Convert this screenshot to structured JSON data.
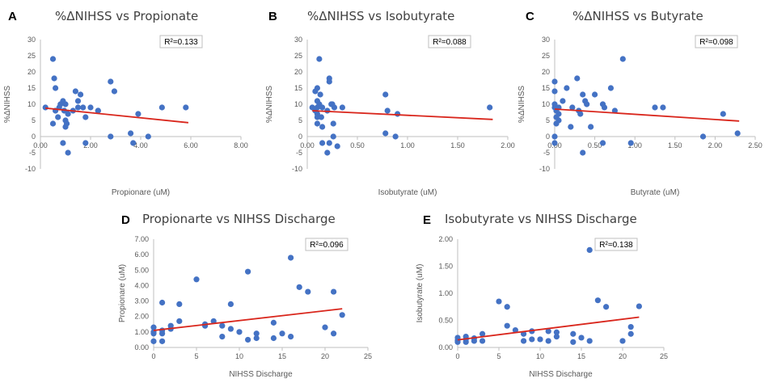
{
  "chart_data": [
    {
      "id": "A",
      "letter": "A",
      "type": "scatter",
      "title": "%ΔNIHSS vs Propionate",
      "xlabel": "Propionare (uM)",
      "ylabel": "%ΔNIHSS",
      "xlim": [
        0,
        8
      ],
      "ylim": [
        -10,
        30
      ],
      "xticks": [
        "0.00",
        "2.00",
        "4.00",
        "6.00",
        "8.00"
      ],
      "yticks": [
        "-10",
        "-5",
        "0",
        "5",
        "10",
        "15",
        "20",
        "25",
        "30"
      ],
      "r2": "R²=0.133",
      "trend": [
        [
          0.2,
          8.8
        ],
        [
          5.9,
          4.3
        ]
      ],
      "points": [
        [
          0.2,
          9
        ],
        [
          0.5,
          24
        ],
        [
          0.55,
          18
        ],
        [
          0.6,
          15
        ],
        [
          0.6,
          8
        ],
        [
          0.5,
          4
        ],
        [
          0.7,
          6
        ],
        [
          0.75,
          9
        ],
        [
          0.8,
          10
        ],
        [
          0.9,
          11
        ],
        [
          0.95,
          8
        ],
        [
          1.0,
          10
        ],
        [
          1.0,
          5
        ],
        [
          1.05,
          4
        ],
        [
          1.0,
          3
        ],
        [
          1.1,
          7
        ],
        [
          0.9,
          -2
        ],
        [
          1.1,
          -5
        ],
        [
          1.3,
          8
        ],
        [
          1.4,
          14
        ],
        [
          1.5,
          11
        ],
        [
          1.5,
          9
        ],
        [
          1.6,
          13
        ],
        [
          1.7,
          9
        ],
        [
          1.8,
          6
        ],
        [
          1.8,
          -2
        ],
        [
          2.0,
          9
        ],
        [
          2.3,
          8
        ],
        [
          2.3,
          8
        ],
        [
          2.8,
          17
        ],
        [
          2.95,
          14
        ],
        [
          2.8,
          0
        ],
        [
          3.6,
          1
        ],
        [
          3.7,
          -2
        ],
        [
          3.9,
          7
        ],
        [
          4.3,
          0
        ],
        [
          4.85,
          9
        ],
        [
          5.8,
          9
        ]
      ]
    },
    {
      "id": "B",
      "letter": "B",
      "type": "scatter",
      "title": "%ΔNIHSS vs Isobutyrate",
      "xlabel": "Isobutyrate (uM)",
      "ylabel": "%ΔNIHSS",
      "xlim": [
        0,
        2
      ],
      "ylim": [
        -10,
        30
      ],
      "xticks": [
        "0.00",
        "0.50",
        "1.00",
        "1.50",
        "2.00"
      ],
      "yticks": [
        "-10",
        "-5",
        "0",
        "5",
        "10",
        "15",
        "20",
        "25",
        "30"
      ],
      "r2": "R²=0.088",
      "trend": [
        [
          0.05,
          8.0
        ],
        [
          1.85,
          5.3
        ]
      ],
      "points": [
        [
          0.05,
          9
        ],
        [
          0.08,
          14
        ],
        [
          0.08,
          8
        ],
        [
          0.1,
          15
        ],
        [
          0.1,
          11
        ],
        [
          0.1,
          9
        ],
        [
          0.1,
          7
        ],
        [
          0.1,
          6
        ],
        [
          0.1,
          4
        ],
        [
          0.12,
          24
        ],
        [
          0.12,
          10
        ],
        [
          0.13,
          13
        ],
        [
          0.14,
          6
        ],
        [
          0.15,
          9
        ],
        [
          0.15,
          3
        ],
        [
          0.15,
          -2
        ],
        [
          0.2,
          8
        ],
        [
          0.22,
          18
        ],
        [
          0.22,
          17
        ],
        [
          0.22,
          -2
        ],
        [
          0.24,
          10
        ],
        [
          0.25,
          10
        ],
        [
          0.27,
          9
        ],
        [
          0.26,
          4
        ],
        [
          0.2,
          -5
        ],
        [
          0.3,
          -3
        ],
        [
          0.35,
          9
        ],
        [
          0.26,
          0
        ],
        [
          0.78,
          13
        ],
        [
          0.78,
          1
        ],
        [
          0.8,
          8
        ],
        [
          0.88,
          0
        ],
        [
          0.9,
          7
        ],
        [
          1.82,
          9
        ]
      ]
    },
    {
      "id": "C",
      "letter": "C",
      "type": "scatter",
      "title": "%ΔNIHSS vs Butyrate",
      "xlabel": "Butyrate (uM)",
      "ylabel": "%ΔNIHSS",
      "xlim": [
        0,
        2.5
      ],
      "ylim": [
        -10,
        30
      ],
      "xticks": [
        "0.00",
        "0.50",
        "1.00",
        "1.50",
        "2.00",
        "2.50"
      ],
      "yticks": [
        "-10",
        "-5",
        "0",
        "5",
        "10",
        "15",
        "20",
        "25",
        "30"
      ],
      "r2": "R²=0.098",
      "trend": [
        [
          0.0,
          8.5
        ],
        [
          2.3,
          4.8
        ]
      ],
      "points": [
        [
          0.0,
          17
        ],
        [
          0.0,
          14
        ],
        [
          0.0,
          10
        ],
        [
          0.0,
          9
        ],
        [
          0.02,
          8
        ],
        [
          0.02,
          6
        ],
        [
          0.02,
          4
        ],
        [
          0.05,
          7
        ],
        [
          0.0,
          0
        ],
        [
          0.0,
          -2
        ],
        [
          0.05,
          9
        ],
        [
          0.05,
          5
        ],
        [
          0.1,
          11
        ],
        [
          0.15,
          15
        ],
        [
          0.2,
          3
        ],
        [
          0.22,
          9
        ],
        [
          0.28,
          18
        ],
        [
          0.3,
          8
        ],
        [
          0.32,
          7
        ],
        [
          0.35,
          13
        ],
        [
          0.35,
          -5
        ],
        [
          0.38,
          11
        ],
        [
          0.4,
          10
        ],
        [
          0.45,
          3
        ],
        [
          0.5,
          13
        ],
        [
          0.6,
          10
        ],
        [
          0.62,
          9
        ],
        [
          0.7,
          15
        ],
        [
          0.75,
          8
        ],
        [
          0.6,
          -2
        ],
        [
          0.85,
          24
        ],
        [
          0.95,
          -2
        ],
        [
          1.25,
          9
        ],
        [
          1.35,
          9
        ],
        [
          1.85,
          0
        ],
        [
          2.1,
          7
        ],
        [
          2.28,
          1
        ]
      ]
    },
    {
      "id": "D",
      "letter": "D",
      "type": "scatter",
      "title": "Propionarte vs NIHSS Discharge",
      "xlabel": "NIHSS Discharge",
      "ylabel": "Propionare (uM)",
      "xlim": [
        0,
        25
      ],
      "ylim": [
        0,
        7
      ],
      "xticks": [
        "0",
        "5",
        "10",
        "15",
        "20",
        "25"
      ],
      "yticks": [
        "0.00",
        "1.00",
        "2.00",
        "3.00",
        "4.00",
        "5.00",
        "6.00",
        "7.00"
      ],
      "r2": "R²=0.096",
      "trend": [
        [
          0,
          1.1
        ],
        [
          22,
          2.5
        ]
      ],
      "points": [
        [
          0,
          1.3
        ],
        [
          0,
          1.0
        ],
        [
          0,
          0.9
        ],
        [
          0,
          0.4
        ],
        [
          1,
          2.9
        ],
        [
          1,
          0.9
        ],
        [
          1,
          0.4
        ],
        [
          1,
          1.1
        ],
        [
          2,
          1.2
        ],
        [
          2,
          1.4
        ],
        [
          3,
          1.7
        ],
        [
          3,
          2.8
        ],
        [
          5,
          4.4
        ],
        [
          6,
          1.5
        ],
        [
          6,
          1.4
        ],
        [
          7,
          1.7
        ],
        [
          8,
          1.4
        ],
        [
          8,
          0.7
        ],
        [
          9,
          2.8
        ],
        [
          9,
          1.2
        ],
        [
          10,
          1.0
        ],
        [
          11,
          0.5
        ],
        [
          11,
          4.9
        ],
        [
          12,
          0.9
        ],
        [
          12,
          0.6
        ],
        [
          14,
          1.6
        ],
        [
          14,
          0.6
        ],
        [
          15,
          0.9
        ],
        [
          16,
          5.8
        ],
        [
          16,
          0.7
        ],
        [
          17,
          3.9
        ],
        [
          18,
          3.6
        ],
        [
          20,
          1.3
        ],
        [
          21,
          3.6
        ],
        [
          21,
          0.9
        ],
        [
          22,
          2.1
        ]
      ]
    },
    {
      "id": "E",
      "letter": "E",
      "type": "scatter",
      "title": "Isobutyrate vs NIHSS Discharge",
      "xlabel": "NIHSS Discharge",
      "ylabel": "Isobutyrate (uM)",
      "xlim": [
        0,
        25
      ],
      "ylim": [
        0,
        2
      ],
      "xticks": [
        "0",
        "5",
        "10",
        "15",
        "20",
        "25"
      ],
      "yticks": [
        "0.00",
        "0.50",
        "1.00",
        "1.50",
        "2.00"
      ],
      "r2": "R²=0.138",
      "trend": [
        [
          0,
          0.14
        ],
        [
          22,
          0.56
        ]
      ],
      "points": [
        [
          0,
          0.18
        ],
        [
          0,
          0.13
        ],
        [
          0,
          0.1
        ],
        [
          1,
          0.2
        ],
        [
          1,
          0.15
        ],
        [
          1,
          0.1
        ],
        [
          2,
          0.17
        ],
        [
          2,
          0.12
        ],
        [
          3,
          0.25
        ],
        [
          3,
          0.12
        ],
        [
          5,
          0.85
        ],
        [
          6,
          0.75
        ],
        [
          6,
          0.4
        ],
        [
          7,
          0.32
        ],
        [
          8,
          0.25
        ],
        [
          8,
          0.12
        ],
        [
          9,
          0.3
        ],
        [
          9,
          0.15
        ],
        [
          10,
          0.15
        ],
        [
          11,
          0.3
        ],
        [
          11,
          0.12
        ],
        [
          12,
          0.28
        ],
        [
          12,
          0.2
        ],
        [
          14,
          0.25
        ],
        [
          14,
          0.1
        ],
        [
          15,
          0.18
        ],
        [
          16,
          1.8
        ],
        [
          16,
          0.12
        ],
        [
          17,
          0.87
        ],
        [
          18,
          0.75
        ],
        [
          20,
          0.12
        ],
        [
          21,
          0.38
        ],
        [
          21,
          0.25
        ],
        [
          22,
          0.76
        ]
      ]
    }
  ],
  "colors": {
    "point": "#4472c4",
    "trend": "#d9261c",
    "axis": "#bfbfbf",
    "text": "#595959"
  }
}
